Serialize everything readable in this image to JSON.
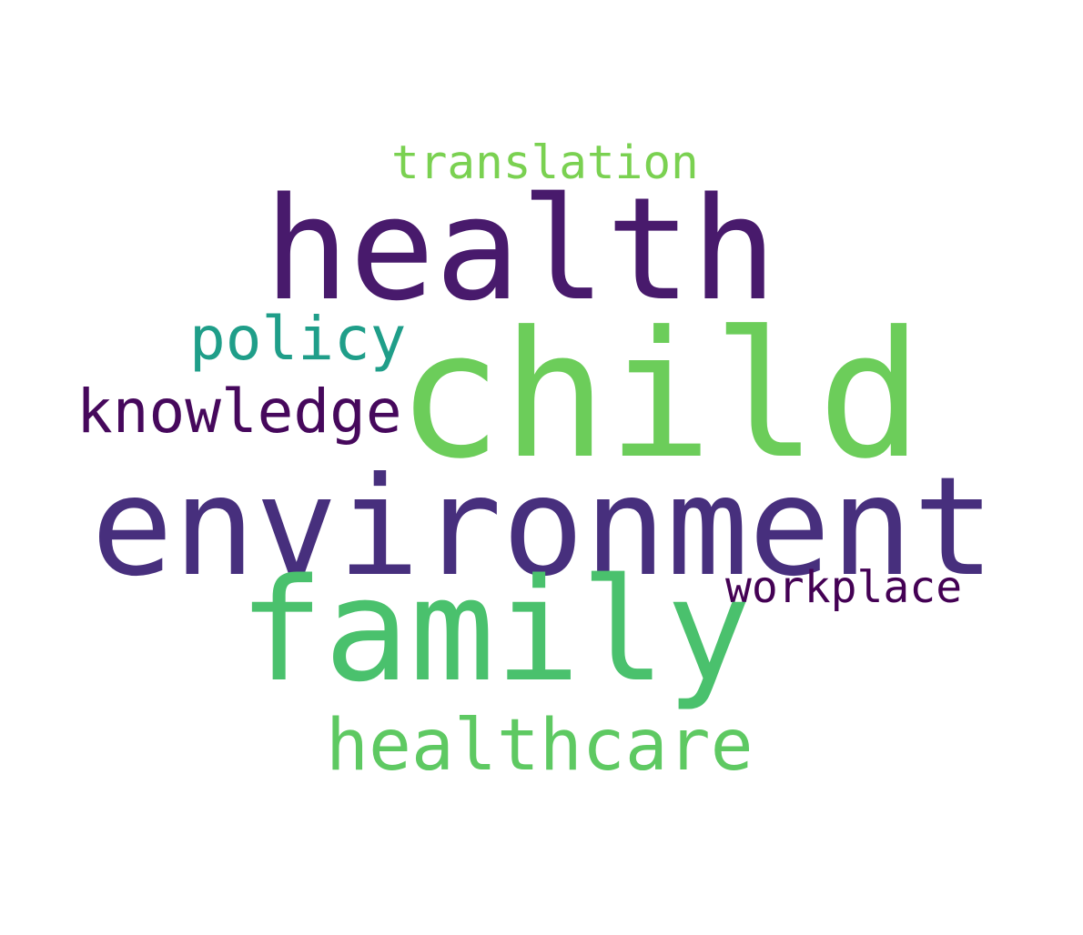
{
  "words": [
    {
      "text": "translation",
      "color": "#7ad151"
    },
    {
      "text": "health",
      "color": "#481a6c"
    },
    {
      "text": "policy",
      "color": "#1f9e89"
    },
    {
      "text": "child",
      "color": "#6ccd5a"
    },
    {
      "text": "knowledge",
      "color": "#46085c"
    },
    {
      "text": "environment",
      "color": "#472f7d"
    },
    {
      "text": "workplace",
      "color": "#440154"
    },
    {
      "text": "family",
      "color": "#4ac16d"
    },
    {
      "text": "healthcare",
      "color": "#5ec962"
    }
  ]
}
